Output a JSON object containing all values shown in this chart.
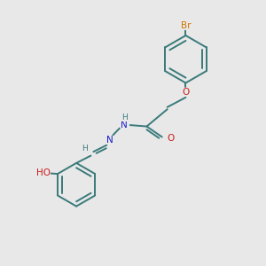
{
  "bg_color": "#e8e8e8",
  "atom_colors": {
    "C": "#3a7a7a",
    "H": "#3a7a7a",
    "N": "#1a1acc",
    "O": "#cc1a1a",
    "Br": "#cc7700"
  },
  "bond_color": "#3a7a7a",
  "line_width": 1.4
}
